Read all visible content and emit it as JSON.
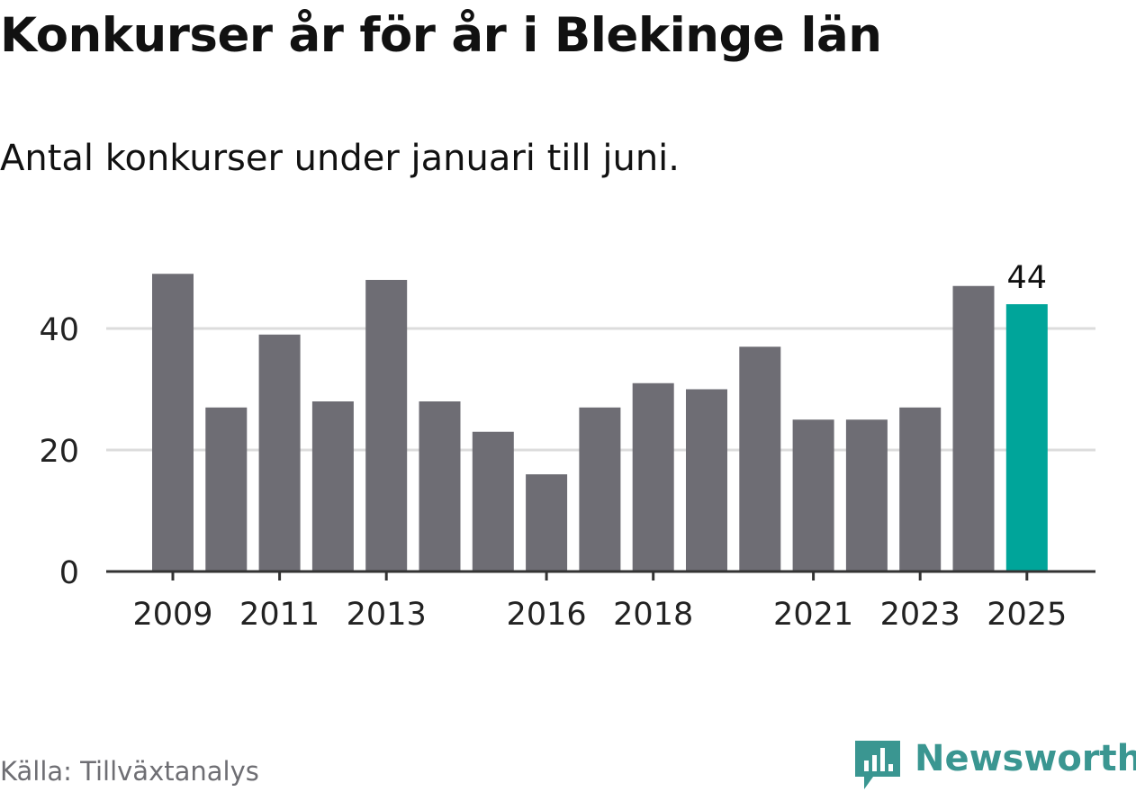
{
  "header": {
    "title": "Konkurser år för år i Blekinge län",
    "subtitle": "Antal konkurser under januari till juni."
  },
  "footer": {
    "source": "Källa: Tillväxtanalys",
    "brand": "Newsworthy",
    "brand_logo_icon": "newsworthy-chart-bubble-icon"
  },
  "colors": {
    "bar": "#6e6d74",
    "highlight": "#00a59a",
    "grid": "#dcdcdc",
    "axis": "#333333",
    "text": "#111111",
    "brand": "#3a9691",
    "muted": "#6e6e73"
  },
  "chart_data": {
    "type": "bar",
    "categories": [
      "2009",
      "2010",
      "2011",
      "2012",
      "2013",
      "2014",
      "2015",
      "2016",
      "2017",
      "2018",
      "2019",
      "2020",
      "2021",
      "2022",
      "2023",
      "2024",
      "2025"
    ],
    "values": [
      49,
      27,
      39,
      28,
      48,
      28,
      23,
      16,
      27,
      31,
      30,
      37,
      25,
      25,
      27,
      47,
      44
    ],
    "x_tick_labels": [
      "2009",
      "2011",
      "2013",
      "2016",
      "2018",
      "2021",
      "2023",
      "2025"
    ],
    "y_ticks": [
      0,
      20,
      40
    ],
    "ylim": [
      0,
      50
    ],
    "highlight_category": "2025",
    "annotations": [
      {
        "category": "2025",
        "text": "44"
      }
    ],
    "grid": true,
    "xlabel": "",
    "ylabel": ""
  }
}
